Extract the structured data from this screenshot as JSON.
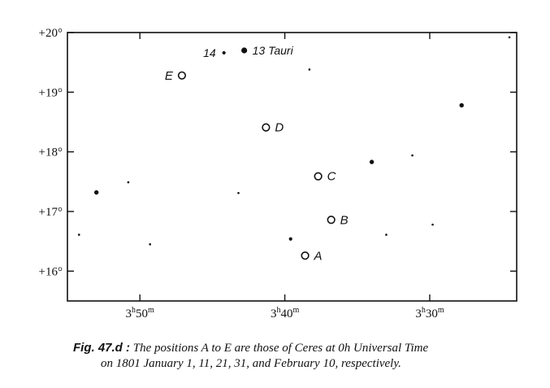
{
  "chart_data": {
    "type": "scatter",
    "title": "",
    "xlabel": "",
    "ylabel": "",
    "x_axis": {
      "direction": "decreasing-right-ascension",
      "range_minutes": [
        55.0,
        24.0
      ],
      "ticks": [
        {
          "value": 50,
          "label_main": "3",
          "label_h": "h",
          "label_min": "50",
          "label_m": "m"
        },
        {
          "value": 40,
          "label_main": "3",
          "label_h": "h",
          "label_min": "40",
          "label_m": "m"
        },
        {
          "value": 30,
          "label_main": "3",
          "label_h": "h",
          "label_min": "30",
          "label_m": "m"
        }
      ]
    },
    "y_axis": {
      "range_deg": [
        15.5,
        20.0
      ],
      "ticks": [
        {
          "value": 20,
          "label": "+20°"
        },
        {
          "value": 19,
          "label": "+19°"
        },
        {
          "value": 18,
          "label": "+18°"
        },
        {
          "value": 17,
          "label": "+17°"
        },
        {
          "value": 16,
          "label": "+16°"
        }
      ]
    },
    "stars": [
      {
        "x": 42.8,
        "y": 19.7,
        "size": "large",
        "label": "13 Tauri",
        "label_side": "right"
      },
      {
        "x": 44.2,
        "y": 19.66,
        "size": "small",
        "label": "14",
        "label_side": "left"
      },
      {
        "x": 38.3,
        "y": 19.38,
        "size": "tiny"
      },
      {
        "x": 24.5,
        "y": 19.92,
        "size": "tiny"
      },
      {
        "x": 27.8,
        "y": 18.78,
        "size": "medium"
      },
      {
        "x": 31.2,
        "y": 17.94,
        "size": "tiny"
      },
      {
        "x": 34.0,
        "y": 17.83,
        "size": "medium"
      },
      {
        "x": 53.0,
        "y": 17.32,
        "size": "medium"
      },
      {
        "x": 50.8,
        "y": 17.49,
        "size": "tiny"
      },
      {
        "x": 43.2,
        "y": 17.31,
        "size": "tiny"
      },
      {
        "x": 54.2,
        "y": 16.61,
        "size": "tiny"
      },
      {
        "x": 49.3,
        "y": 16.45,
        "size": "tiny"
      },
      {
        "x": 39.6,
        "y": 16.54,
        "size": "small"
      },
      {
        "x": 33.0,
        "y": 16.61,
        "size": "tiny"
      },
      {
        "x": 29.8,
        "y": 16.78,
        "size": "tiny"
      }
    ],
    "ceres_positions": [
      {
        "label": "A",
        "x": 38.6,
        "y": 16.26
      },
      {
        "label": "B",
        "x": 36.8,
        "y": 16.86
      },
      {
        "label": "C",
        "x": 37.7,
        "y": 17.59
      },
      {
        "label": "D",
        "x": 41.3,
        "y": 18.41
      },
      {
        "label": "E",
        "x": 47.1,
        "y": 19.28
      }
    ]
  },
  "caption": {
    "figure_ref": "Fig. 47.d :",
    "line1": "The positions A to E are those of Ceres at 0h Universal Time",
    "line2": "on 1801 January 1, 11, 21, 31, and February 10, respectively."
  }
}
